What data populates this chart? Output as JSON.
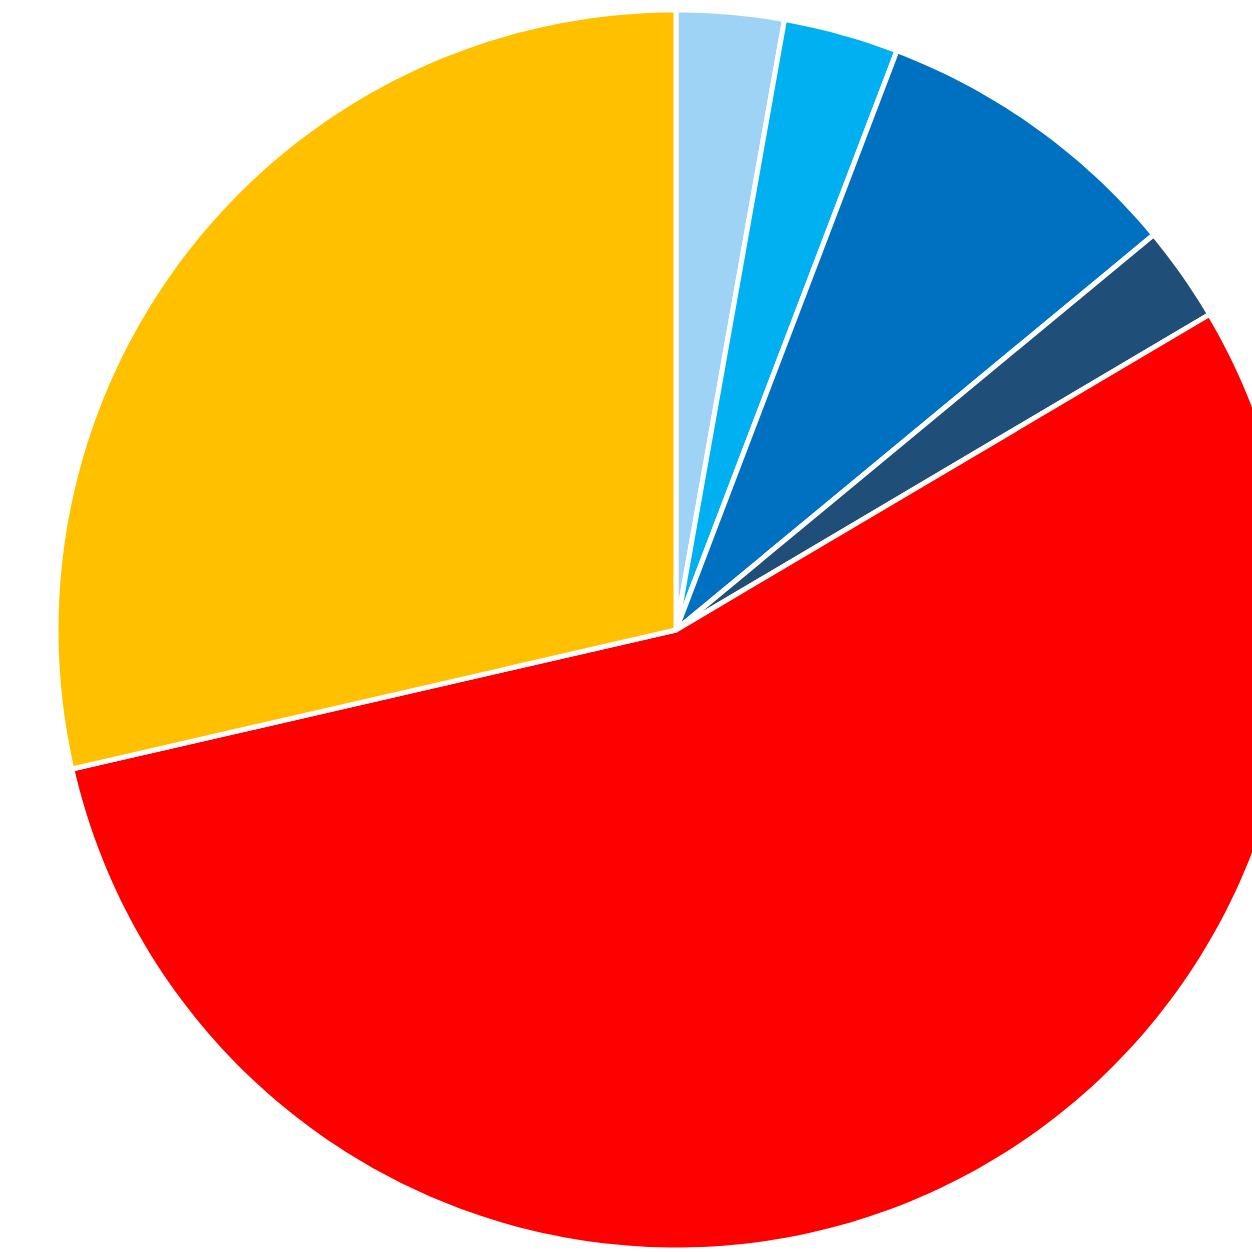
{
  "chart_data": {
    "type": "pie",
    "categories": [
      null,
      null,
      null,
      null,
      null,
      null
    ],
    "values": [
      2.8,
      3.0,
      8.2,
      2.5,
      54.9,
      28.6
    ],
    "colors": [
      "#9fd3f5",
      "#00b0f0",
      "#0070c0",
      "#1f4e79",
      "#ff0000",
      "#ffc000"
    ]
  }
}
